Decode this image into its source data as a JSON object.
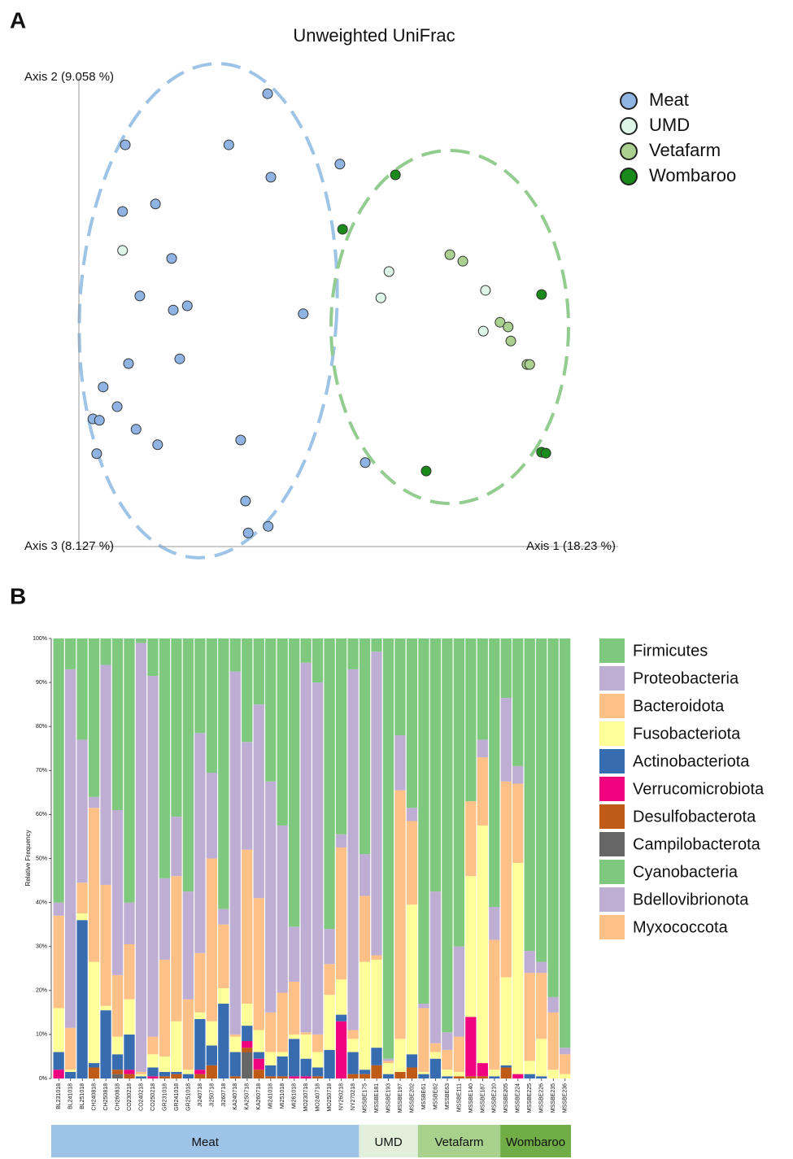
{
  "chart_data": [
    {
      "type": "scatter",
      "panel": "A",
      "title": "Unweighted UniFrac",
      "y_label": "Axis 2 (9.058 %)",
      "z_label": "Axis 3 (8.127 %)",
      "x_label": "Axis 1 (18.23 %)",
      "xlim": [
        0,
        1
      ],
      "ylim": [
        0,
        1
      ],
      "series": [
        {
          "name": "Meat",
          "color": "#8fb4e3",
          "x": [
            0.35,
            0.086,
            0.278,
            0.356,
            0.484,
            0.142,
            0.081,
            0.172,
            0.113,
            0.175,
            0.201,
            0.416,
            0.187,
            0.092,
            0.045,
            0.071,
            0.026,
            0.038,
            0.106,
            0.146,
            0.033,
            0.3,
            0.531,
            0.309,
            0.351,
            0.314
          ],
          "y": [
            0.965,
            0.856,
            0.856,
            0.787,
            0.815,
            0.73,
            0.714,
            0.614,
            0.534,
            0.504,
            0.513,
            0.496,
            0.4,
            0.39,
            0.34,
            0.298,
            0.272,
            0.269,
            0.25,
            0.217,
            0.198,
            0.227,
            0.179,
            0.097,
            0.043,
            0.029
          ]
        },
        {
          "name": "UMD",
          "color": "#dcf5e6",
          "x": [
            0.081,
            0.575,
            0.56,
            0.754,
            0.75
          ],
          "y": [
            0.631,
            0.586,
            0.53,
            0.546,
            0.459
          ]
        },
        {
          "name": "Vetafarm",
          "color": "#a9d08e",
          "x": [
            0.688,
            0.712,
            0.781,
            0.796,
            0.801,
            0.831,
            0.836
          ],
          "y": [
            0.622,
            0.608,
            0.478,
            0.468,
            0.438,
            0.388,
            0.388
          ]
        },
        {
          "name": "Wombaroo",
          "color": "#1a8a1a",
          "x": [
            0.587,
            0.489,
            0.858,
            0.858,
            0.866,
            0.644
          ],
          "y": [
            0.792,
            0.676,
            0.537,
            0.201,
            0.199,
            0.161
          ]
        }
      ]
    },
    {
      "type": "stacked_bar",
      "panel": "B",
      "y_label": "Relative Frequency",
      "ylim": [
        0,
        100
      ],
      "yticks": [
        {
          "value": 0,
          "label": "0%"
        },
        {
          "value": 10,
          "label": "10%"
        },
        {
          "value": 20,
          "label": "20%"
        },
        {
          "value": 30,
          "label": "30%"
        },
        {
          "value": 40,
          "label": "40%"
        },
        {
          "value": 50,
          "label": "50%"
        },
        {
          "value": 60,
          "label": "60%"
        },
        {
          "value": 70,
          "label": "70%"
        },
        {
          "value": 80,
          "label": "80%"
        },
        {
          "value": 90,
          "label": "90%"
        },
        {
          "value": 100,
          "label": "100%"
        }
      ],
      "categories": [
        "BL231018",
        "BL241018",
        "BL251018",
        "CH240818",
        "CH250818",
        "CH260818",
        "CO230218",
        "CO240218",
        "CO250218",
        "GR231018",
        "GR241018",
        "GR251018",
        "JI240718",
        "JI250718",
        "JI260718",
        "KA240718",
        "KA250718",
        "KA260718",
        "MI241018",
        "MI251018",
        "MI261018",
        "MO230718",
        "MO240718",
        "MO250718",
        "NY260218",
        "NY270218",
        "MSSBE175",
        "MSSBE181",
        "MSSBE193",
        "MSSBE197",
        "MSSBE202",
        "MSSBE61",
        "MSSBE62",
        "MSSBE63",
        "MSSBE111",
        "MSSBE140",
        "MSSBE187",
        "MSSBE210",
        "MSSBE205",
        "MSSBE224",
        "MSSBE225",
        "MSSBE226",
        "MSSBE235",
        "MSSBE236"
      ],
      "groups": [
        {
          "name": "Meat",
          "color": "#9dc3e6",
          "size": 26
        },
        {
          "name": "UMD",
          "color": "#e2efda",
          "size": 5
        },
        {
          "name": "Vetafarm",
          "color": "#a9d18e",
          "size": 7
        },
        {
          "name": "Wombaroo",
          "color": "#70ad47",
          "size": 6
        }
      ],
      "series": [
        {
          "name": "Firmicutes",
          "color": "#7fc97f",
          "values": [
            60,
            7,
            23,
            36,
            6,
            39,
            60,
            1,
            8.5,
            54.5,
            40.5,
            57.5,
            21.5,
            30.5,
            61.5,
            7.5,
            23.5,
            15,
            32.5,
            42.5,
            65.5,
            5.5,
            10,
            66,
            44.5,
            7,
            49,
            3,
            95.5,
            22,
            38.5,
            83,
            57.5,
            89.5,
            70,
            37,
            23,
            61,
            13.5,
            29,
            71,
            73.5,
            81.5,
            93
          ]
        },
        {
          "name": "Proteobacteria",
          "color": "#beaed4",
          "values": [
            3,
            81.5,
            32.5,
            2.5,
            50,
            37.5,
            9.5,
            97.5,
            82,
            18.5,
            13.5,
            24.5,
            50,
            19.5,
            3.5,
            82.5,
            24.5,
            44,
            52.5,
            38,
            12.5,
            84,
            80,
            8,
            3,
            82,
            9.5,
            69,
            0.5,
            12.5,
            3,
            1,
            34.5,
            4,
            20.5,
            0,
            4,
            7.5,
            19,
            4,
            5,
            2.5,
            3.5,
            1.5
          ]
        },
        {
          "name": "Bacteroidota",
          "color": "#fdc086",
          "values": [
            21,
            9.5,
            7,
            35,
            27.5,
            14,
            12.5,
            0.5,
            4,
            22,
            33,
            16,
            13.5,
            37,
            14.5,
            0.5,
            35,
            30,
            9,
            13.5,
            12,
            0.5,
            4,
            7,
            30,
            2,
            15,
            1,
            0.5,
            56.5,
            19,
            14.5,
            2,
            4.5,
            8,
            17,
            15.5,
            29.5,
            44.5,
            18,
            20,
            15,
            13,
            4.5
          ]
        },
        {
          "name": "Fusobacteriota",
          "color": "#ffff99",
          "values": [
            10,
            0.5,
            1.5,
            23,
            1,
            4,
            8,
            0.5,
            3,
            3.5,
            11.5,
            1,
            1.5,
            5.5,
            3.5,
            3.5,
            5,
            5,
            3,
            1,
            1,
            5.5,
            3.5,
            12.5,
            8,
            3,
            24.5,
            20,
            2.5,
            7.5,
            34,
            0.5,
            1.5,
            1.5,
            1,
            32,
            54,
            1.5,
            20,
            48,
            3,
            8.5,
            2,
            1
          ]
        },
        {
          "name": "Actinobacteriota",
          "color": "#386cb0",
          "values": [
            4,
            1.5,
            36,
            1,
            15.5,
            3.5,
            8,
            0.5,
            2,
            1,
            0.5,
            1,
            11.5,
            4.5,
            17,
            5.5,
            3.5,
            1.5,
            2.5,
            4.5,
            8.5,
            4,
            2,
            6.5,
            1.5,
            5,
            1,
            4,
            1,
            0,
            3,
            1,
            4.5,
            0.5,
            0,
            0,
            0,
            0.5,
            0.5,
            0,
            1,
            0.5,
            0,
            0
          ]
        },
        {
          "name": "Verrucomicrobiota",
          "color": "#f0027f",
          "values": [
            2,
            0,
            0,
            0,
            0,
            0,
            1,
            0,
            0.5,
            0,
            0,
            0,
            1,
            0,
            0,
            0,
            1.5,
            2.5,
            0,
            0,
            0.5,
            0.5,
            0,
            0,
            13,
            0,
            0,
            0,
            0,
            0,
            0,
            0,
            0,
            0,
            0,
            13.5,
            3,
            0,
            0,
            1,
            0,
            0,
            0,
            0
          ]
        },
        {
          "name": "Desulfobacterota",
          "color": "#bf5b17",
          "values": [
            0,
            0,
            0,
            2.5,
            0,
            1,
            1,
            0,
            0,
            0.5,
            1,
            0,
            1,
            3,
            0,
            0.5,
            1,
            2,
            0.5,
            0.5,
            0,
            0,
            0.5,
            0,
            0,
            1,
            1,
            3,
            0,
            1.5,
            2.5,
            0,
            0,
            0,
            0.5,
            0.5,
            0.5,
            0,
            2.5,
            0,
            0,
            0,
            0,
            0
          ]
        },
        {
          "name": "Campilobacterota",
          "color": "#666666",
          "values": [
            0,
            0,
            0,
            0,
            0,
            1,
            0,
            0,
            0,
            0,
            0,
            0,
            0,
            0,
            0,
            0,
            6,
            0,
            0,
            0,
            0,
            0,
            0,
            0,
            0,
            0,
            0,
            0,
            0,
            0,
            0,
            0,
            0,
            0,
            0,
            0,
            0,
            0,
            0,
            0,
            0,
            0,
            0,
            0
          ]
        },
        {
          "name": "Cyanobacteria",
          "color": "#7fc97f",
          "values": [
            0,
            0,
            0,
            0,
            0,
            0,
            0,
            0,
            0,
            0,
            0,
            0,
            0,
            0,
            0,
            0,
            0,
            0,
            0,
            0,
            0,
            0,
            0,
            0,
            0,
            0,
            0,
            0,
            0,
            0,
            0,
            0,
            0,
            0,
            0,
            0,
            0,
            0,
            0,
            0,
            0,
            0,
            0,
            0
          ]
        },
        {
          "name": "Bdellovibrionota",
          "color": "#beaed4",
          "values": [
            0,
            0,
            0,
            0,
            0,
            0,
            0,
            0,
            0,
            0,
            0,
            0,
            0,
            0,
            0,
            0,
            0,
            0,
            0,
            0,
            0,
            0,
            0,
            0,
            0,
            0,
            0,
            0,
            0,
            0,
            0,
            0,
            0,
            0,
            0,
            0,
            0,
            0,
            0,
            0,
            0,
            0,
            0,
            0
          ]
        },
        {
          "name": "Myxococcota",
          "color": "#fdc086",
          "values": [
            0,
            0,
            0,
            0,
            0,
            0,
            0,
            0,
            0,
            0,
            0,
            0,
            0,
            0,
            0,
            0,
            0,
            0,
            0,
            0,
            0,
            0,
            0,
            0,
            0,
            0,
            0,
            0,
            0,
            0,
            0,
            0,
            0,
            0,
            0,
            0,
            0,
            0,
            0,
            0,
            0,
            0,
            0,
            0
          ]
        }
      ]
    }
  ]
}
